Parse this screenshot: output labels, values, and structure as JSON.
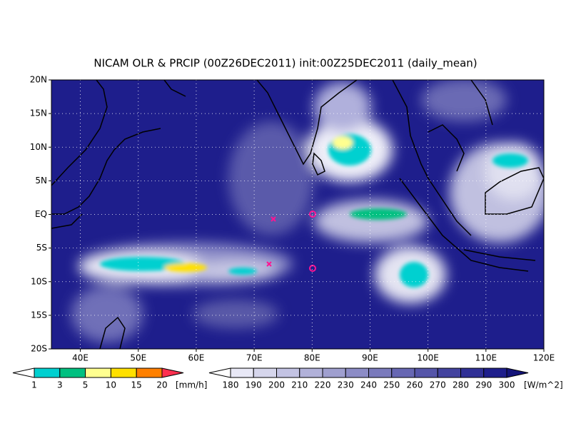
{
  "title": "NICAM OLR & PRCIP (00Z26DEC2011) init:00Z25DEC2011 (daily_mean)",
  "lat_labels": [
    "20N",
    "15N",
    "10N",
    "5N",
    "EQ",
    "5S",
    "10S",
    "15S",
    "20S"
  ],
  "lon_labels": [
    "40E",
    "50E",
    "60E",
    "70E",
    "80E",
    "90E",
    "100E",
    "110E",
    "120E"
  ],
  "precip_scale": {
    "labels": [
      "1",
      "3",
      "5",
      "10",
      "15",
      "20"
    ],
    "unit": "[mm/h]"
  },
  "olr_scale": {
    "labels": [
      "180",
      "190",
      "200",
      "210",
      "220",
      "230",
      "240",
      "250",
      "260",
      "270",
      "280",
      "290",
      "300"
    ],
    "unit": "[W/m^2]"
  }
}
